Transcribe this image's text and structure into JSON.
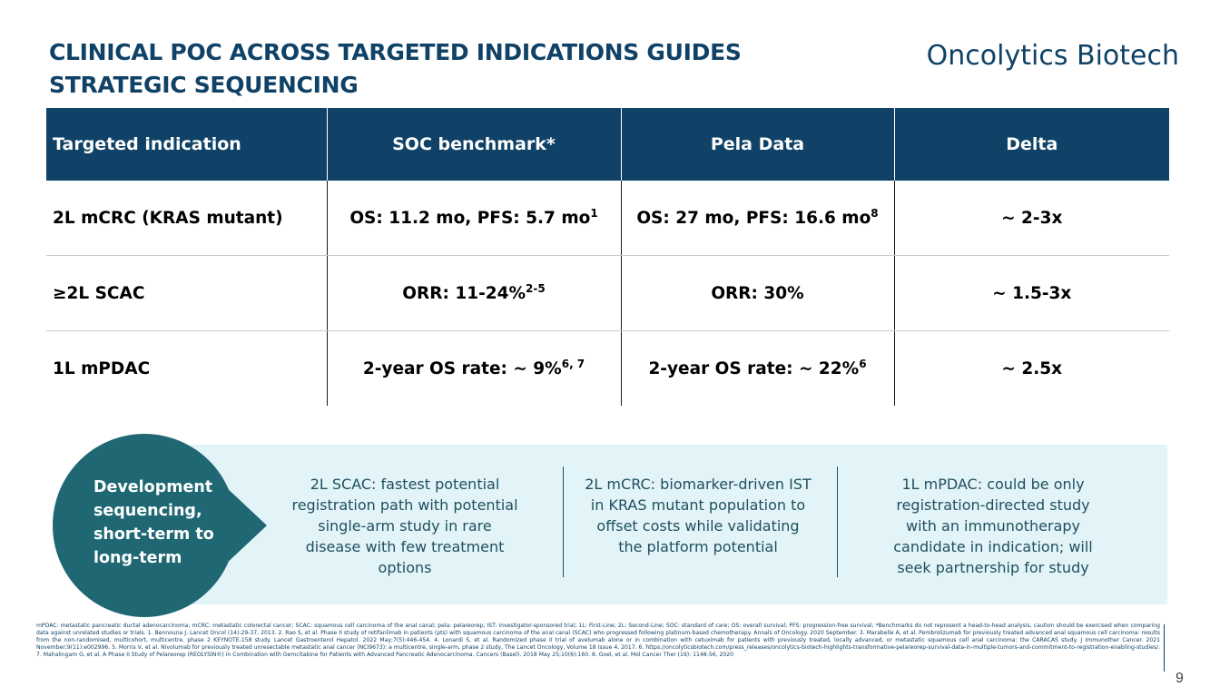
{
  "header": {
    "title_line1": "CLINICAL POC ACROSS TARGETED INDICATIONS GUIDES",
    "title_line2": "STRATEGIC SEQUENCING",
    "brand": "Oncolytics Biotech"
  },
  "table": {
    "headers": [
      "Targeted indication",
      "SOC benchmark*",
      "Pela Data",
      "Delta"
    ],
    "rows": [
      {
        "indication": "2L mCRC (KRAS mutant)",
        "soc": "OS: 11.2 mo, PFS: 5.7 mo",
        "soc_sup": "1",
        "pela": "OS: 27 mo, PFS: 16.6 mo",
        "pela_sup": "8",
        "delta": "~ 2-3x"
      },
      {
        "indication": "≥2L SCAC",
        "soc": "ORR: 11-24%",
        "soc_sup": "2-5",
        "pela": "ORR: 30%",
        "pela_sup": "",
        "delta": "~ 1.5-3x"
      },
      {
        "indication": "1L mPDAC",
        "soc": "2-year OS rate: ~ 9%",
        "soc_sup": "6, 7",
        "pela": "2-year OS rate: ~ 22%",
        "pela_sup": "6",
        "delta": "~ 2.5x"
      }
    ]
  },
  "sequencing": {
    "bubble": "Development sequencing, short-term to long-term",
    "items": [
      "2L SCAC: fastest potential registration path with potential single-arm study in rare disease with few treatment options",
      "2L mCRC: biomarker-driven IST in KRAS mutant population to offset costs while validating the platform potential",
      "1L mPDAC: could be only registration-directed study with an immunotherapy candidate in indication; will seek partnership for study"
    ]
  },
  "footnote": "mPDAC: metastatic pancreatic ductal adenocarcinoma; mCRC: metastatic colorectal cancer; SCAC: squamous cell carcinoma of the anal canal; pela: pelareorep; IST: investigator-sponsored trial; 1L: First-Line; 2L: Second-Line; SOC: standard of care; OS: overall survival; PFS: progression-free survival; *Benchmarks do not represent a head-to-head analysis, caution should be exercised when comparing data against unrelated studies or trials. 1. Bennouna J. Lancet Oncol (14):29-37, 2013. 2. Rao S, et al. Phase II study of retifanlimab in patients (pts) with squamous carcinoma of the anal canal (SCAC) who progressed following platinum-based chemotherapy. Annals of Oncology. 2020 September. 3. Marabelle A, et al. Pembrolizumab for previously treated advanced anal squamous cell carcinoma: results from the non-randomised, multicohort, multicentre, phase 2 KEYNOTE-158 study. Lancet Gastroenterol Hepatol. 2022 May;7(5):446-454. 4. Lonardi S, et al. Randomized phase II trial of avelumab alone or in combination with cetuximab for patients with previously treated, locally advanced, or metastatic squamous cell anal carcinoma: the CARACAS study. J Immunother Cancer. 2021 November;9(11):e002996. 5. Morris V, et al. Nivolumab for previously treated unresectable metastatic anal cancer (NCI9673): a multicentre, single-arm, phase 2 study, The Lancet Oncology, Volume 18 Issue 4, 2017. 6. https://oncolyticsbiotech.com/press_releases/oncolytics-biotech-highlights-transformative-pelareorep-survival-data-in-multiple-tumors-and-commitment-to-registration-enabling-studies/. 7. Mahalingam G, et al. A Phase II Study of Pelareorep (REOLYSIN®) in Combination with Gemcitabine for Patients with Advanced Pancreatic Adenocarcinoma. Cancers (Basel). 2018 May 25;10(6):160. 8. Goel, et al. Mol Cancer Ther (19): 1148-56, 2020",
  "page_number": "9"
}
